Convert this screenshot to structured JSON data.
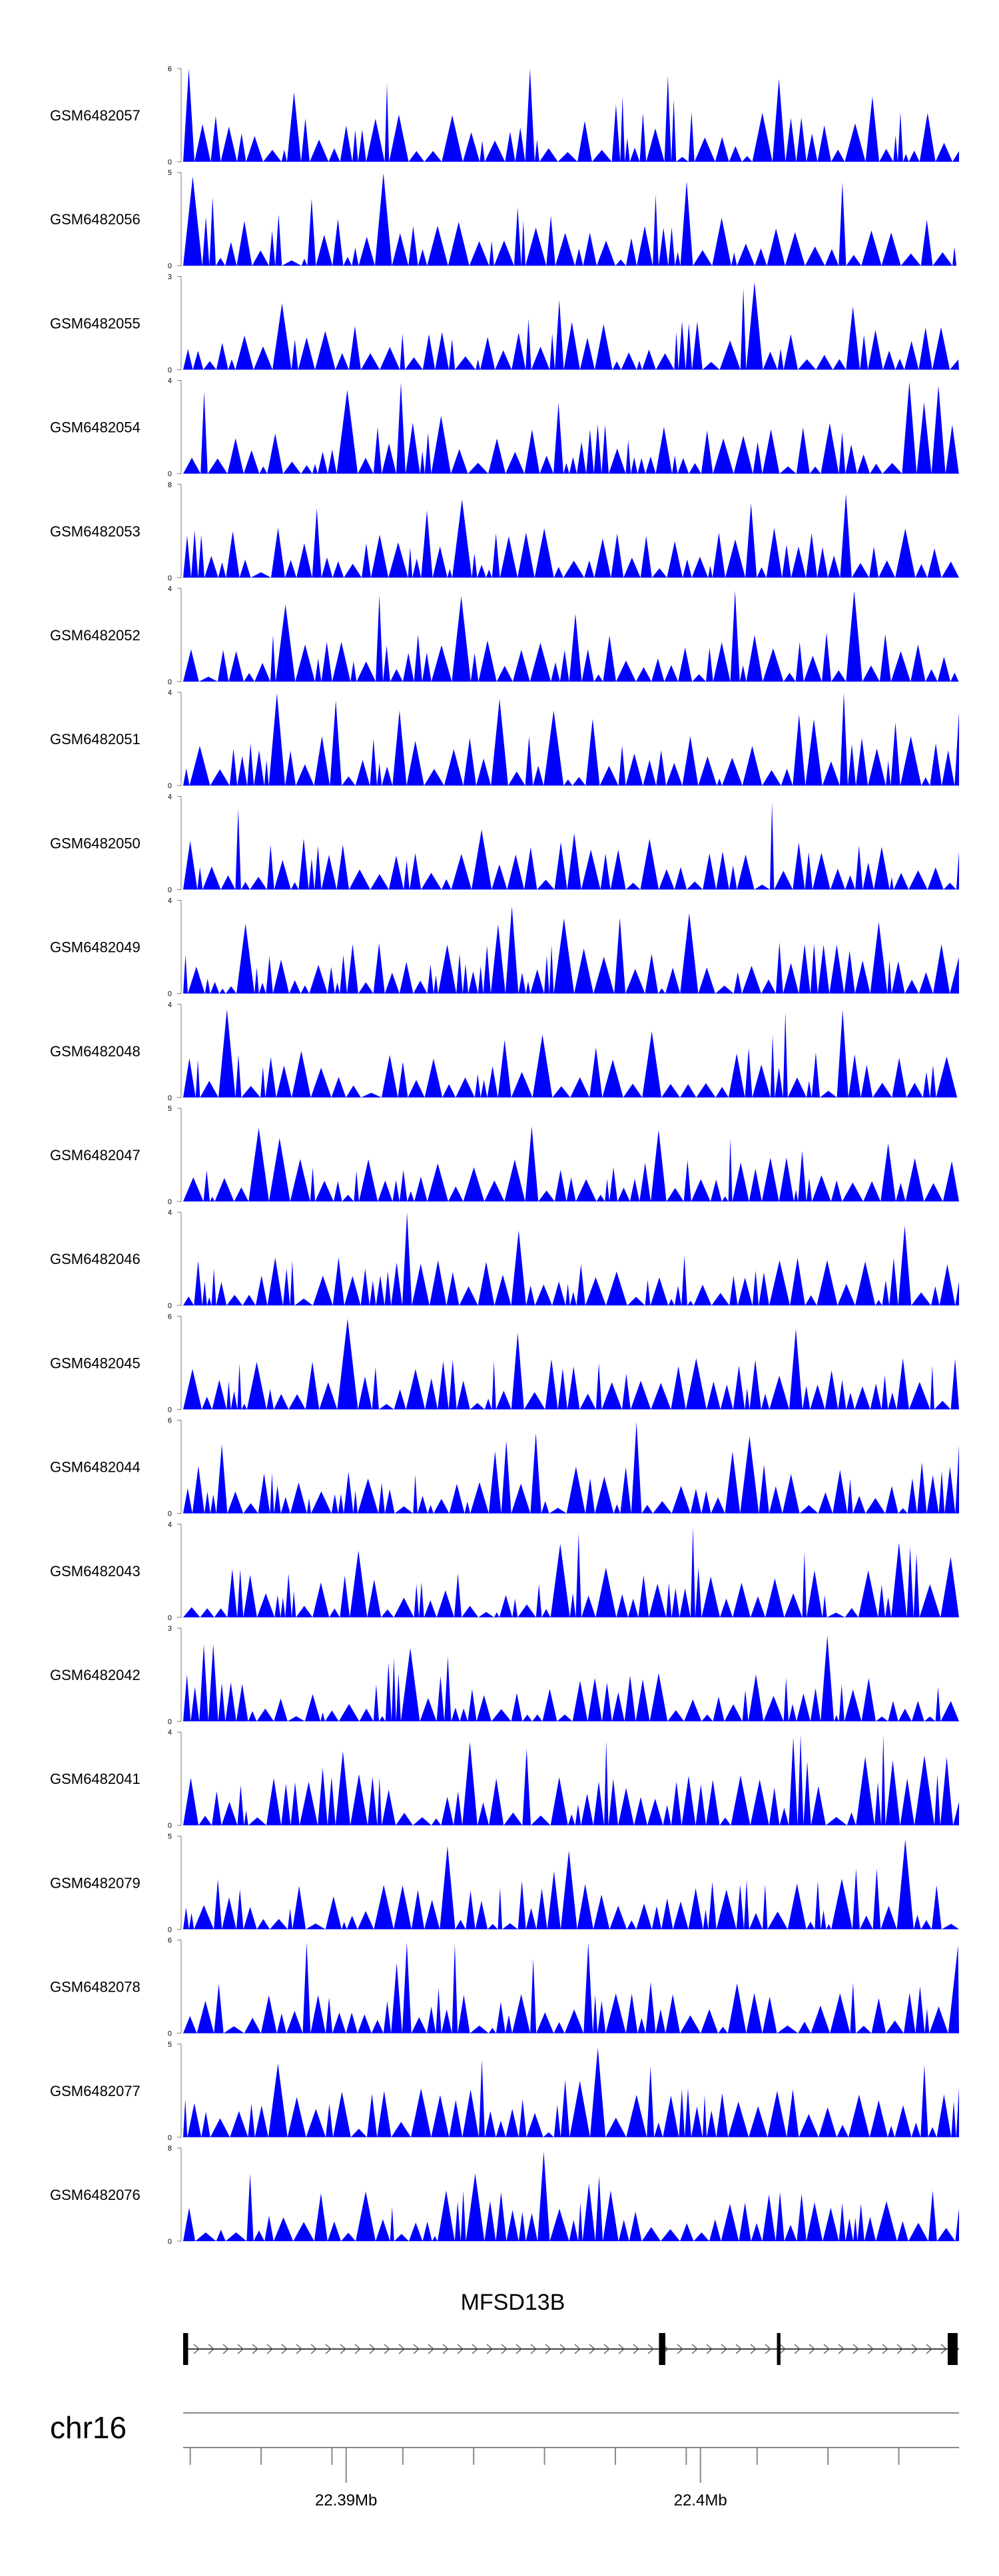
{
  "chart_data": {
    "type": "area",
    "color": "#0000ff",
    "tracks": [
      {
        "name": "GSM6482057",
        "ymax": 6
      },
      {
        "name": "GSM6482056",
        "ymax": 5
      },
      {
        "name": "GSM6482055",
        "ymax": 3
      },
      {
        "name": "GSM6482054",
        "ymax": 4
      },
      {
        "name": "GSM6482053",
        "ymax": 8
      },
      {
        "name": "GSM6482052",
        "ymax": 4
      },
      {
        "name": "GSM6482051",
        "ymax": 4
      },
      {
        "name": "GSM6482050",
        "ymax": 4
      },
      {
        "name": "GSM6482049",
        "ymax": 4
      },
      {
        "name": "GSM6482048",
        "ymax": 4
      },
      {
        "name": "GSM6482047",
        "ymax": 5
      },
      {
        "name": "GSM6482046",
        "ymax": 4
      },
      {
        "name": "GSM6482045",
        "ymax": 6
      },
      {
        "name": "GSM6482044",
        "ymax": 6
      },
      {
        "name": "GSM6482043",
        "ymax": 4
      },
      {
        "name": "GSM6482042",
        "ymax": 3
      },
      {
        "name": "GSM6482041",
        "ymax": 4
      },
      {
        "name": "GSM6482079",
        "ymax": 5
      },
      {
        "name": "GSM6482078",
        "ymax": 6
      },
      {
        "name": "GSM6482077",
        "ymax": 5
      },
      {
        "name": "GSM6482076",
        "ymax": 8
      }
    ],
    "ymin": 0,
    "gene": {
      "name": "MFSD13B",
      "strand": "+",
      "exons": [
        [
          22.3854,
          22.38554
        ],
        [
          22.39883,
          22.39901
        ],
        [
          22.40216,
          22.40226
        ],
        [
          22.40698,
          22.40726
        ]
      ]
    },
    "chromosome": "chr16",
    "xlim": [
      22.3854,
      22.4073
    ],
    "x_ticks_labeled": [
      {
        "value": 22.39,
        "label": "22.39Mb"
      },
      {
        "value": 22.4,
        "label": "22.4Mb"
      }
    ],
    "x_ticks_minor": [
      22.3856,
      22.3876,
      22.3896,
      22.3916,
      22.3936,
      22.3956,
      22.3976,
      22.3996,
      22.4016,
      22.4036,
      22.4056,
      22.4076
    ]
  }
}
